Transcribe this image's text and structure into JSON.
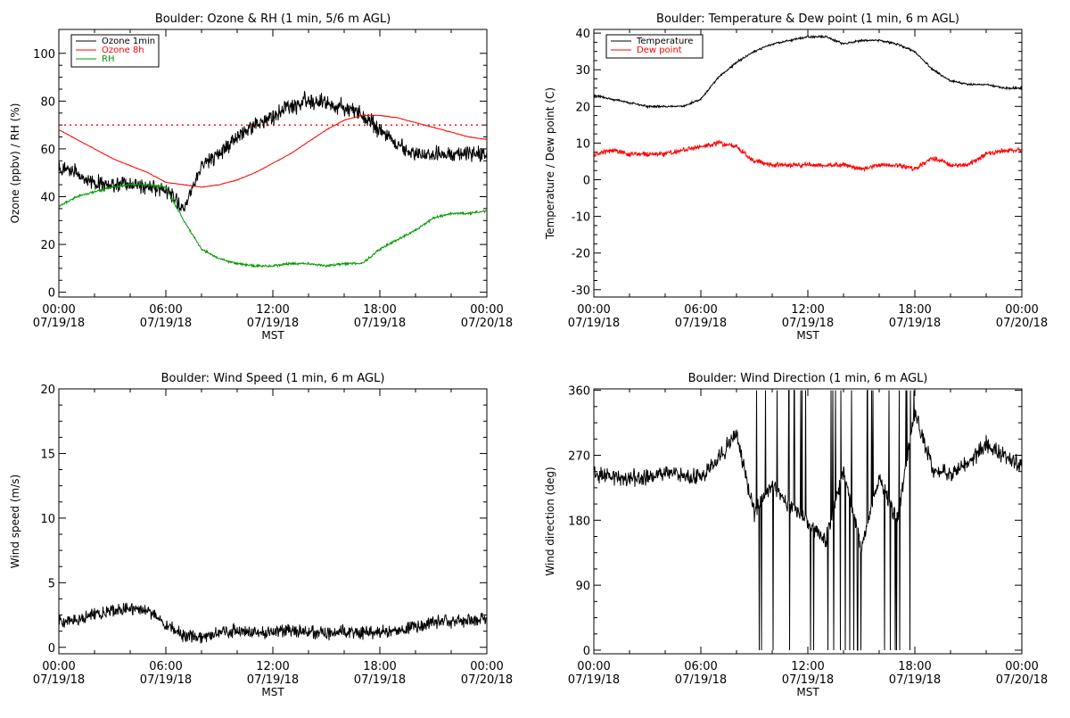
{
  "page": {
    "x_axis_title": "MST",
    "x_tick_times": [
      "00:00",
      "06:00",
      "12:00",
      "18:00",
      "00:00"
    ],
    "x_tick_dates": [
      "07/19/18",
      "07/19/18",
      "07/19/18",
      "07/19/18",
      "07/20/18"
    ]
  },
  "chart_data": [
    {
      "type": "line",
      "title": "Boulder: Ozone & RH (1 min, 5/6 m AGL)",
      "xlabel": "MST",
      "ylabel": "Ozone (ppbv) / RH (%)",
      "xlim": [
        "07/19/18 00:00",
        "07/20/18 00:00"
      ],
      "ylim": [
        -2,
        110
      ],
      "yticks": [
        0,
        20,
        40,
        60,
        80,
        100
      ],
      "legend_position": "top-left",
      "reference_line": {
        "y": 70,
        "color": "#ff0000",
        "style": "dotted"
      },
      "x_hours": [
        0,
        1,
        2,
        3,
        4,
        5,
        6,
        7,
        8,
        9,
        10,
        11,
        12,
        13,
        14,
        15,
        16,
        17,
        18,
        19,
        20,
        21,
        22,
        23,
        24
      ],
      "series": [
        {
          "name": "Ozone 1min",
          "color": "#000000",
          "values": [
            52,
            50,
            46,
            45,
            45,
            44,
            43,
            35,
            52,
            58,
            65,
            70,
            73,
            78,
            80,
            79,
            77,
            74,
            68,
            62,
            58,
            58,
            58,
            58,
            57
          ]
        },
        {
          "name": "Ozone 8h",
          "color": "#ff0000",
          "values": [
            68,
            64,
            60,
            56,
            53,
            50,
            46,
            45,
            44,
            45,
            47,
            50,
            54,
            58,
            63,
            68,
            72,
            74,
            74,
            73,
            71,
            69,
            67,
            65,
            64
          ]
        },
        {
          "name": "RH",
          "color": "#009900",
          "values": [
            36,
            40,
            42,
            44,
            45,
            45,
            44,
            30,
            18,
            14,
            12,
            11,
            11,
            12,
            12,
            11,
            12,
            12,
            18,
            22,
            26,
            31,
            33,
            33,
            34
          ]
        }
      ]
    },
    {
      "type": "line",
      "title": "Boulder: Temperature & Dew point (1 min, 6 m AGL)",
      "xlabel": "MST",
      "ylabel": "Temperature / Dew point (C)",
      "xlim": [
        "07/19/18 00:00",
        "07/20/18 00:00"
      ],
      "ylim": [
        -32,
        41
      ],
      "yticks": [
        -30,
        -20,
        -10,
        0,
        10,
        20,
        30,
        40
      ],
      "legend_position": "top-left",
      "x_hours": [
        0,
        1,
        2,
        3,
        4,
        5,
        6,
        7,
        8,
        9,
        10,
        11,
        12,
        13,
        14,
        15,
        16,
        17,
        18,
        19,
        20,
        21,
        22,
        23,
        24
      ],
      "series": [
        {
          "name": "Temperature",
          "color": "#000000",
          "values": [
            23,
            22,
            21,
            20,
            20,
            20,
            22,
            28,
            32,
            35,
            37,
            38,
            39,
            39,
            37,
            38,
            38,
            37,
            35,
            30,
            27,
            26,
            26,
            25,
            25
          ]
        },
        {
          "name": "Dew point",
          "color": "#ff0000",
          "values": [
            7,
            8,
            7,
            7,
            7,
            8,
            9,
            10,
            9,
            5,
            4,
            4,
            4,
            4,
            4,
            3,
            4,
            4,
            3,
            6,
            4,
            4,
            7,
            8,
            8
          ]
        }
      ]
    },
    {
      "type": "line",
      "title": "Boulder: Wind Speed (1 min, 6 m AGL)",
      "xlabel": "MST",
      "ylabel": "Wind speed (m/s)",
      "xlim": [
        "07/19/18 00:00",
        "07/20/18 00:00"
      ],
      "ylim": [
        -0.5,
        20
      ],
      "yticks": [
        0,
        5,
        10,
        15,
        20
      ],
      "x_hours": [
        0,
        1,
        2,
        3,
        4,
        5,
        6,
        7,
        8,
        9,
        10,
        11,
        12,
        13,
        14,
        15,
        16,
        17,
        18,
        19,
        20,
        21,
        22,
        23,
        24
      ],
      "series": [
        {
          "name": "",
          "color": "#000000",
          "values": [
            2.0,
            2.1,
            2.6,
            2.8,
            3.0,
            2.8,
            1.8,
            0.9,
            0.8,
            1.2,
            1.3,
            1.1,
            1.2,
            1.3,
            1.2,
            1.1,
            1.2,
            1.1,
            1.2,
            1.3,
            1.6,
            2.0,
            2.0,
            2.1,
            2.2
          ]
        }
      ]
    },
    {
      "type": "line",
      "title": "Boulder: Wind Direction (1 min, 6 m AGL)",
      "xlabel": "MST",
      "ylabel": "Wind direction (deg)",
      "xlim": [
        "07/19/18 00:00",
        "07/20/18 00:00"
      ],
      "ylim": [
        -5,
        362
      ],
      "yticks": [
        0,
        90,
        180,
        270,
        360
      ],
      "x_hours": [
        0,
        1,
        2,
        3,
        4,
        5,
        6,
        7,
        8,
        9,
        10,
        11,
        12,
        13,
        14,
        15,
        16,
        17,
        18,
        19,
        20,
        21,
        22,
        23,
        24
      ],
      "series": [
        {
          "name": "",
          "color": "#000000",
          "values": [
            245,
            240,
            238,
            240,
            245,
            242,
            240,
            265,
            300,
            190,
            230,
            200,
            180,
            150,
            250,
            140,
            240,
            180,
            330,
            250,
            245,
            260,
            285,
            270,
            255
          ]
        }
      ]
    }
  ]
}
